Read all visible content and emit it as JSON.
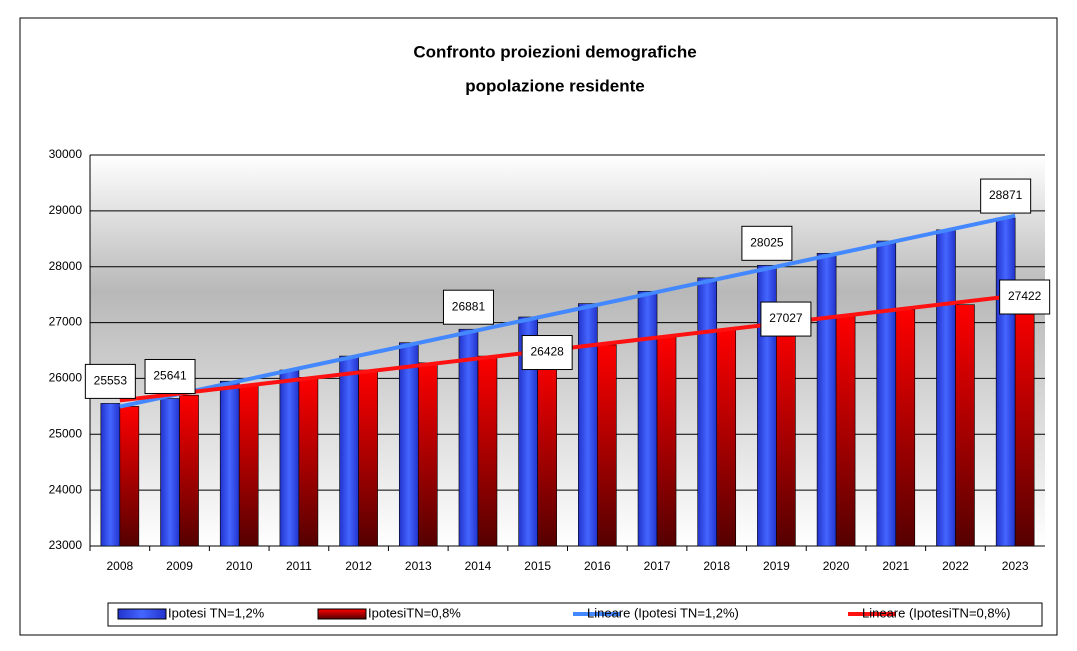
{
  "chart_data": {
    "type": "bar",
    "title": [
      "Confronto proiezioni demografiche",
      "popolazione residente"
    ],
    "categories": [
      "2008",
      "2009",
      "2010",
      "2011",
      "2012",
      "2013",
      "2014",
      "2015",
      "2016",
      "2017",
      "2018",
      "2019",
      "2020",
      "2021",
      "2022",
      "2023"
    ],
    "series": [
      {
        "name": "Ipotesi TN=1,2%",
        "color": "#3355ff",
        "values": [
          25553,
          25641,
          25950,
          26150,
          26400,
          26640,
          26881,
          27100,
          27340,
          27560,
          27800,
          28025,
          28240,
          28460,
          28660,
          28871
        ],
        "labeled": [
          0,
          1,
          6,
          11,
          15
        ]
      },
      {
        "name": "IpotesiTN=0,8%",
        "color": "#ff0000",
        "values": [
          25500,
          25700,
          25880,
          26020,
          26150,
          26280,
          26400,
          26428,
          26600,
          26740,
          26880,
          27027,
          27120,
          27230,
          27320,
          27422
        ],
        "labeled": [
          7,
          11,
          15
        ]
      }
    ],
    "trendlines": [
      {
        "name": "Lineare (Ipotesi TN=1,2%)",
        "color": "#4488ff",
        "series": 0
      },
      {
        "name": "Lineare (IpotesiTN=0,8%)",
        "color": "#ff1111",
        "series": 1
      }
    ],
    "ylim": [
      23000,
      30000
    ],
    "yticks": [
      23000,
      24000,
      25000,
      26000,
      27000,
      28000,
      29000,
      30000
    ],
    "grid": true,
    "legend": "bottom"
  }
}
